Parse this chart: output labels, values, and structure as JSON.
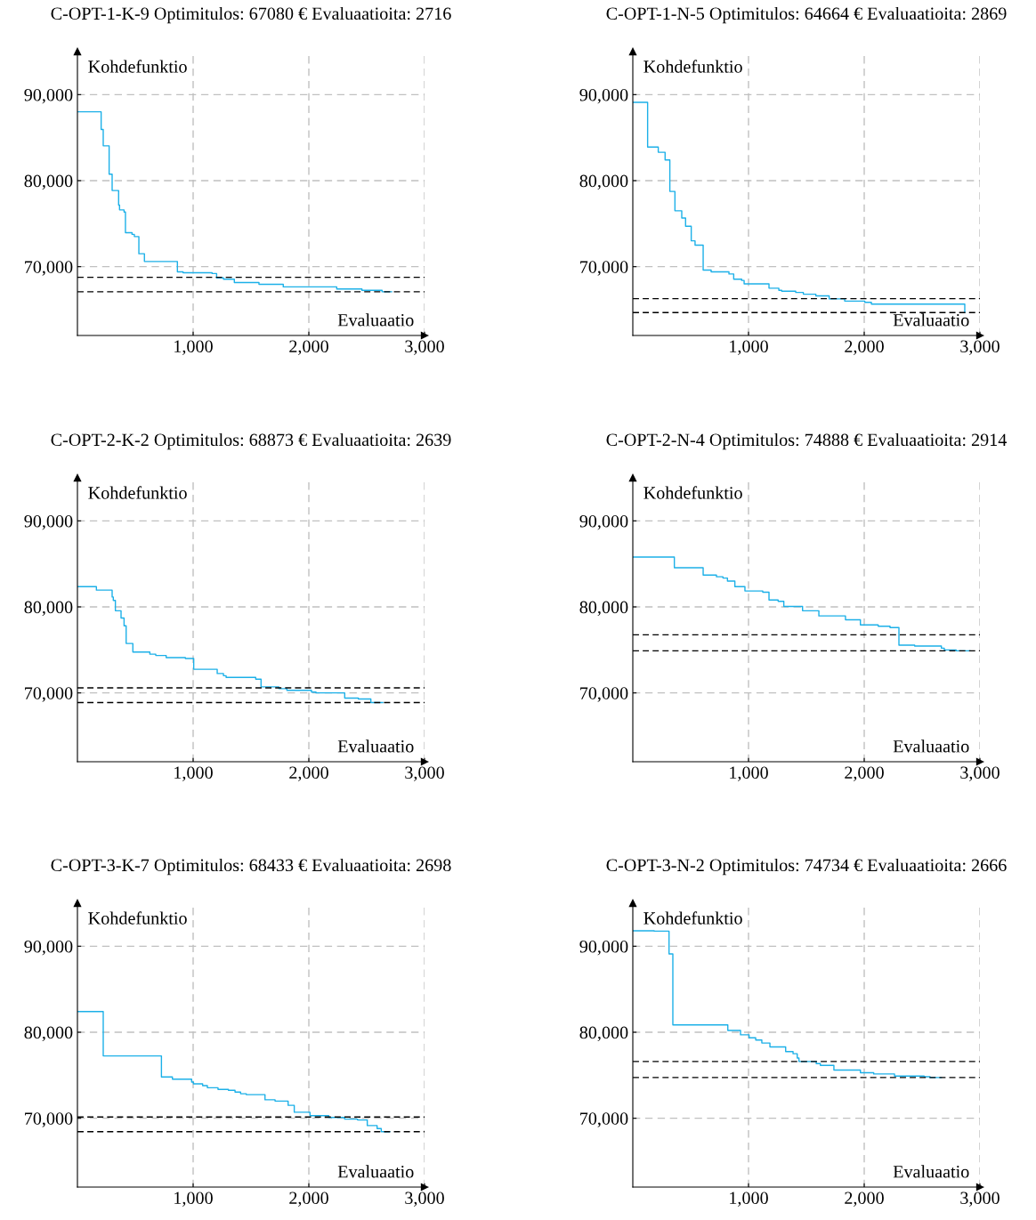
{
  "chart_data": [
    {
      "type": "step",
      "title": "C-OPT-1-K-9 Optimitulos: 67080 € Evaluaatioita: 2716",
      "xlabel": "Evaluaatio",
      "ylabel": "Kohdefunktio",
      "xlim": [
        0,
        3000
      ],
      "ylim": [
        62000,
        95000
      ],
      "xticks": [
        {
          "value": 1000,
          "label": "1,000"
        },
        {
          "value": 2000,
          "label": "2,000"
        },
        {
          "value": 3000,
          "label": "3,000"
        }
      ],
      "yticks": [
        {
          "value": 70000,
          "label": "70,000"
        },
        {
          "value": 80000,
          "label": "80,000"
        },
        {
          "value": 90000,
          "label": "90,000"
        }
      ],
      "grid": true,
      "legend": false,
      "series": [
        {
          "color": "#1cb0e8",
          "x": [
            0,
            205,
            223,
            274,
            300,
            356,
            364,
            403,
            415,
            472,
            492,
            531,
            579,
            864,
            913,
            1164,
            1203,
            1262,
            1356,
            1569,
            1779,
            2241,
            2459,
            2633,
            2716
          ],
          "values": [
            88000,
            85950,
            84050,
            80750,
            78850,
            77150,
            76600,
            76350,
            73950,
            73750,
            73500,
            71500,
            70600,
            69400,
            69300,
            69200,
            68700,
            68550,
            68150,
            67950,
            67650,
            67400,
            67250,
            67080,
            67080
          ]
        }
      ],
      "ref_lines": [
        {
          "axis": "y",
          "value": 68760,
          "color": "#000000",
          "line_style": "dashed"
        },
        {
          "axis": "y",
          "value": 67080,
          "color": "#000000",
          "line_style": "dashed"
        }
      ]
    },
    {
      "type": "step",
      "title": "C-OPT-1-N-5 Optimitulos: 64664 € Evaluaatioita: 2869",
      "xlabel": "Evaluaatio",
      "ylabel": "Kohdefunktio",
      "xlim": [
        0,
        3000
      ],
      "ylim": [
        62000,
        95000
      ],
      "xticks": [
        {
          "value": 1000,
          "label": "1,000"
        },
        {
          "value": 2000,
          "label": "2,000"
        },
        {
          "value": 3000,
          "label": "3,000"
        }
      ],
      "yticks": [
        {
          "value": 70000,
          "label": "70,000"
        },
        {
          "value": 80000,
          "label": "80,000"
        },
        {
          "value": 90000,
          "label": "90,000"
        }
      ],
      "grid": true,
      "legend": false,
      "series": [
        {
          "color": "#1cb0e8",
          "x": [
            0,
            128,
            220,
            279,
            320,
            364,
            423,
            456,
            505,
            538,
            608,
            677,
            831,
            872,
            941,
            962,
            1177,
            1262,
            1287,
            1408,
            1474,
            1582,
            1697,
            1831,
            2005,
            2062,
            2869
          ],
          "values": [
            89100,
            83900,
            83300,
            82400,
            78750,
            76500,
            75650,
            74700,
            73000,
            72500,
            69600,
            69400,
            69150,
            68550,
            68400,
            68000,
            67500,
            67250,
            67150,
            67000,
            66800,
            66600,
            66250,
            66000,
            65850,
            65650,
            64664
          ]
        }
      ],
      "ref_lines": [
        {
          "axis": "y",
          "value": 66280,
          "color": "#000000",
          "line_style": "dashed"
        },
        {
          "axis": "y",
          "value": 64664,
          "color": "#000000",
          "line_style": "dashed"
        }
      ]
    },
    {
      "type": "step",
      "title": "C-OPT-2-K-2 Optimitulos: 68873 € Evaluaatioita: 2639",
      "xlabel": "Evaluaatio",
      "ylabel": "Kohdefunktio",
      "xlim": [
        0,
        3000
      ],
      "ylim": [
        62000,
        95000
      ],
      "xticks": [
        {
          "value": 1000,
          "label": "1,000"
        },
        {
          "value": 2000,
          "label": "2,000"
        },
        {
          "value": 3000,
          "label": "3,000"
        }
      ],
      "yticks": [
        {
          "value": 70000,
          "label": "70,000"
        },
        {
          "value": 80000,
          "label": "80,000"
        },
        {
          "value": 90000,
          "label": "90,000"
        }
      ],
      "grid": true,
      "legend": false,
      "series": [
        {
          "color": "#1cb0e8",
          "x": [
            0,
            164,
            300,
            310,
            328,
            377,
            403,
            421,
            479,
            626,
            677,
            767,
            933,
            1005,
            1208,
            1262,
            1285,
            1541,
            1587,
            1741,
            1810,
            2023,
            2062,
            2310,
            2428,
            2536,
            2639
          ],
          "values": [
            82350,
            81950,
            81150,
            80750,
            79550,
            78700,
            77800,
            75750,
            74750,
            74500,
            74350,
            74100,
            74000,
            72750,
            72250,
            72000,
            71800,
            71600,
            70700,
            70500,
            70300,
            70100,
            70000,
            69400,
            69300,
            68873,
            68873
          ]
        }
      ],
      "ref_lines": [
        {
          "axis": "y",
          "value": 70590,
          "color": "#000000",
          "line_style": "dashed"
        },
        {
          "axis": "y",
          "value": 68873,
          "color": "#000000",
          "line_style": "dashed"
        }
      ]
    },
    {
      "type": "step",
      "title": "C-OPT-2-N-4 Optimitulos: 74888 € Evaluaatioita: 2914",
      "xlabel": "Evaluaatio",
      "ylabel": "Kohdefunktio",
      "xlim": [
        0,
        3000
      ],
      "ylim": [
        62000,
        95000
      ],
      "xticks": [
        {
          "value": 1000,
          "label": "1,000"
        },
        {
          "value": 2000,
          "label": "2,000"
        },
        {
          "value": 3000,
          "label": "3,000"
        }
      ],
      "yticks": [
        {
          "value": 70000,
          "label": "70,000"
        },
        {
          "value": 80000,
          "label": "80,000"
        },
        {
          "value": 90000,
          "label": "90,000"
        }
      ],
      "grid": true,
      "legend": false,
      "series": [
        {
          "color": "#1cb0e8",
          "x": [
            0,
            359,
            608,
            723,
            779,
            818,
            882,
            969,
            1123,
            1177,
            1256,
            1305,
            1467,
            1608,
            1838,
            1967,
            2121,
            2223,
            2300,
            2436,
            2667,
            2692,
            2795,
            2914
          ],
          "values": [
            85800,
            84550,
            83700,
            83500,
            83350,
            83000,
            82350,
            81850,
            81700,
            80800,
            80650,
            80050,
            79550,
            78950,
            78500,
            77900,
            77750,
            77600,
            75550,
            75450,
            75200,
            75000,
            74888,
            74888
          ]
        }
      ],
      "ref_lines": [
        {
          "axis": "y",
          "value": 76760,
          "color": "#000000",
          "line_style": "dashed"
        },
        {
          "axis": "y",
          "value": 74888,
          "color": "#000000",
          "line_style": "dashed"
        }
      ]
    },
    {
      "type": "step",
      "title": "C-OPT-3-K-7 Optimitulos: 68433 € Evaluaatioita: 2698",
      "xlabel": "Evaluaatio",
      "ylabel": "Kohdefunktio",
      "xlim": [
        0,
        3000
      ],
      "ylim": [
        62000,
        95000
      ],
      "xticks": [
        {
          "value": 1000,
          "label": "1,000"
        },
        {
          "value": 2000,
          "label": "2,000"
        },
        {
          "value": 3000,
          "label": "3,000"
        }
      ],
      "yticks": [
        {
          "value": 70000,
          "label": "70,000"
        },
        {
          "value": 80000,
          "label": "80,000"
        },
        {
          "value": 90000,
          "label": "90,000"
        }
      ],
      "grid": true,
      "legend": false,
      "series": [
        {
          "color": "#1cb0e8",
          "x": [
            0,
            223,
            726,
            821,
            987,
            1003,
            1082,
            1123,
            1215,
            1305,
            1362,
            1410,
            1459,
            1621,
            1708,
            1821,
            1874,
            2010,
            2172,
            2310,
            2421,
            2505,
            2590,
            2626,
            2698
          ],
          "values": [
            82400,
            77250,
            74800,
            74550,
            74200,
            74000,
            73800,
            73550,
            73350,
            73250,
            73050,
            72850,
            72750,
            72150,
            72000,
            71500,
            70700,
            70300,
            70100,
            69900,
            69800,
            69150,
            68800,
            68433,
            68433
          ]
        }
      ],
      "ref_lines": [
        {
          "axis": "y",
          "value": 70140,
          "color": "#000000",
          "line_style": "dashed"
        },
        {
          "axis": "y",
          "value": 68433,
          "color": "#000000",
          "line_style": "dashed"
        }
      ]
    },
    {
      "type": "step",
      "title": "C-OPT-3-N-2 Optimitulos: 74734 € Evaluaatioita: 2666",
      "xlabel": "Evaluaatio",
      "ylabel": "Kohdefunktio",
      "xlim": [
        0,
        3000
      ],
      "ylim": [
        62000,
        95000
      ],
      "xticks": [
        {
          "value": 1000,
          "label": "1,000"
        },
        {
          "value": 2000,
          "label": "2,000"
        },
        {
          "value": 3000,
          "label": "3,000"
        }
      ],
      "yticks": [
        {
          "value": 70000,
          "label": "70,000"
        },
        {
          "value": 80000,
          "label": "80,000"
        },
        {
          "value": 90000,
          "label": "90,000"
        }
      ],
      "grid": true,
      "legend": false,
      "series": [
        {
          "color": "#1cb0e8",
          "x": [
            0,
            185,
            313,
            346,
            821,
            931,
            1005,
            1062,
            1115,
            1185,
            1321,
            1385,
            1421,
            1436,
            1585,
            1621,
            1738,
            1967,
            2082,
            2262,
            2518,
            2569,
            2666
          ],
          "values": [
            91800,
            91750,
            89100,
            80850,
            80200,
            79700,
            79350,
            79100,
            78750,
            78300,
            77750,
            77500,
            77000,
            76600,
            76350,
            76150,
            75600,
            75300,
            75150,
            74900,
            74830,
            74734,
            74734
          ]
        }
      ],
      "ref_lines": [
        {
          "axis": "y",
          "value": 76600,
          "color": "#000000",
          "line_style": "dashed"
        },
        {
          "axis": "y",
          "value": 74734,
          "color": "#000000",
          "line_style": "dashed"
        }
      ]
    }
  ]
}
